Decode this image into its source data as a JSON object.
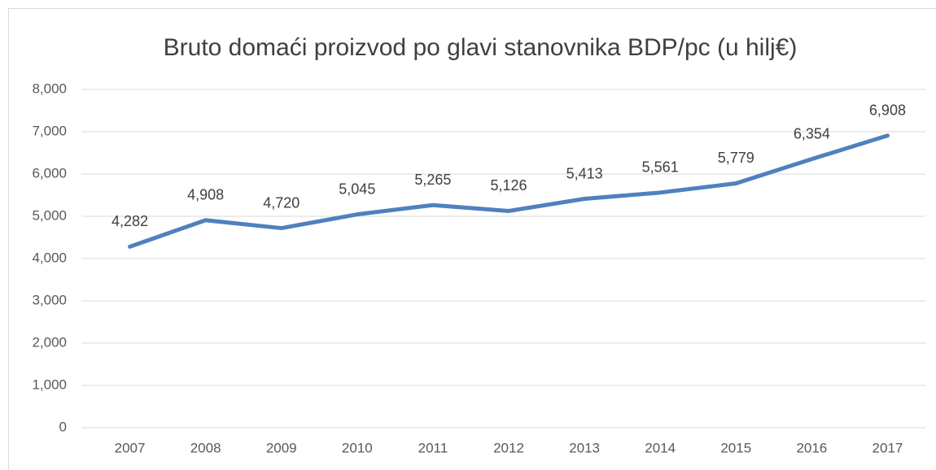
{
  "chart_data": {
    "type": "line",
    "title": "Bruto domaći proizvod po glavi stanovnika BDP/pc (u hilj€)",
    "categories": [
      "2007",
      "2008",
      "2009",
      "2010",
      "2011",
      "2012",
      "2013",
      "2014",
      "2015",
      "2016",
      "2017"
    ],
    "series": [
      {
        "name": "BDP/pc",
        "color": "#4f81bd",
        "values": [
          4282,
          4908,
          4720,
          5045,
          5265,
          5126,
          5413,
          5561,
          5779,
          6354,
          6908
        ],
        "value_labels": [
          "4,282",
          "4,908",
          "4,720",
          "5,045",
          "5,265",
          "5,126",
          "5,413",
          "5,561",
          "5,779",
          "6,354",
          "6,908"
        ]
      }
    ],
    "ylim": [
      0,
      8000
    ],
    "yticks": [
      0,
      {
        "value": 1000,
        "label": "1,000"
      },
      {
        "value": 2000,
        "label": "2,000"
      },
      {
        "value": 3000,
        "label": "3,000"
      },
      {
        "value": 4000,
        "label": "4,000"
      },
      {
        "value": 5000,
        "label": "5,000"
      },
      {
        "value": 6000,
        "label": "6,000"
      },
      {
        "value": 7000,
        "label": "7,000"
      },
      {
        "value": 8000,
        "label": "8,000"
      }
    ],
    "grid": true
  }
}
